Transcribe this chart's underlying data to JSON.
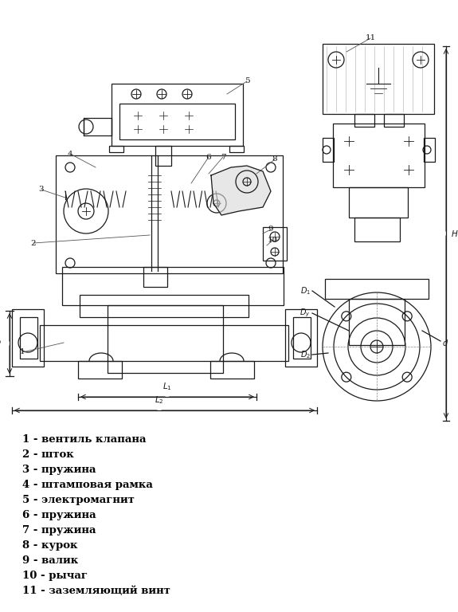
{
  "background_color": "#ffffff",
  "line_color": "#1a1a1a",
  "legend_items": [
    "1 - вентиль клапана",
    "2 - шток",
    "3 - пружина",
    "4 - штамповая рамка",
    "5 - электромагнит",
    "6 - пружина",
    "7 - пружина",
    "8 - курок",
    "9 - валик",
    "10 - рычаг",
    "11 - заземляющий винт"
  ],
  "figure_width": 5.75,
  "figure_height": 7.68,
  "dpi": 100
}
